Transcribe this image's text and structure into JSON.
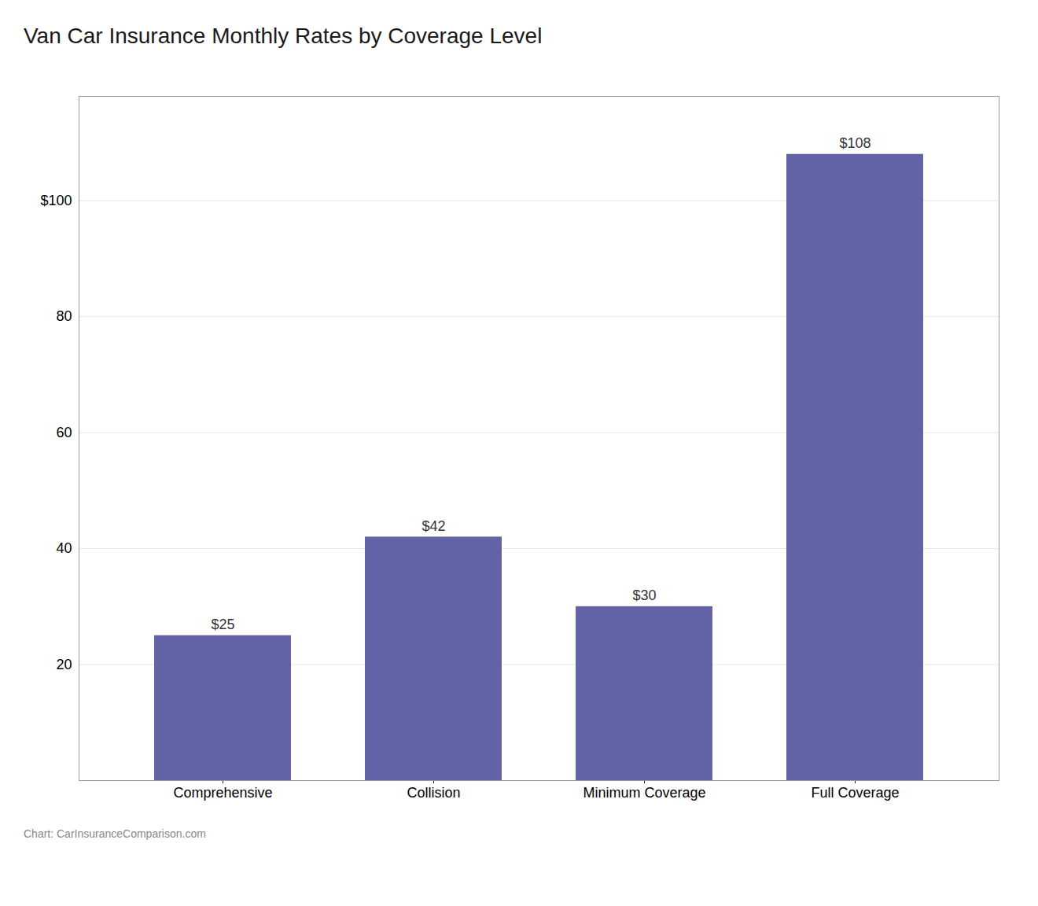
{
  "chart_data": {
    "type": "bar",
    "title": "Van Car Insurance Monthly Rates by Coverage Level",
    "categories": [
      "Comprehensive",
      "Collision",
      "Minimum Coverage",
      "Full Coverage"
    ],
    "values": [
      25,
      42,
      30,
      108
    ],
    "value_labels": [
      "$25",
      "$42",
      "$30",
      "$108"
    ],
    "data_labels": true,
    "color": "#6363a8",
    "ylim": [
      0,
      118
    ],
    "yticks": [
      20,
      40,
      60,
      80,
      {
        "value": 100,
        "label": "$100"
      }
    ],
    "grid": true,
    "caption": "Chart: CarInsuranceComparison.com"
  }
}
